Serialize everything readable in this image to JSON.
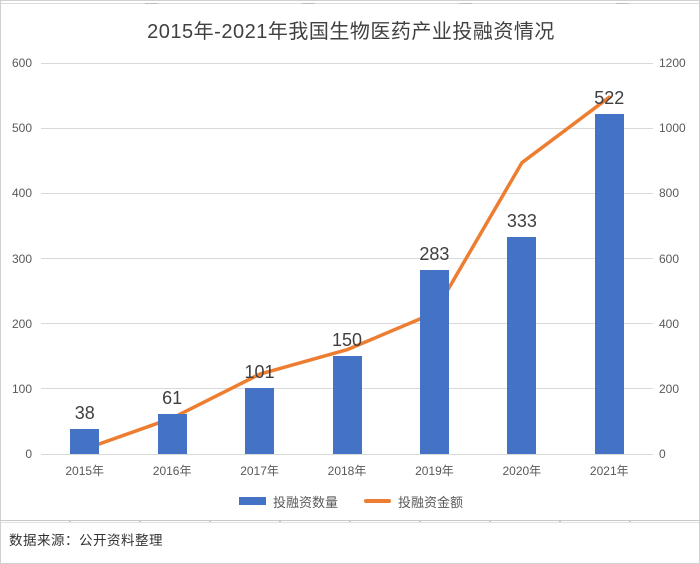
{
  "chart_data": {
    "type": "combo-bar-line",
    "title": "2015年-2021年我国生物医药产业投融资情况",
    "categories": [
      "2015年",
      "2016年",
      "2017年",
      "2018年",
      "2019年",
      "2020年",
      "2021年"
    ],
    "series": [
      {
        "name": "投融资数量",
        "type": "bar",
        "axis": "left",
        "color": "#4472C4",
        "values": [
          38,
          61,
          101,
          150,
          283,
          333,
          522
        ],
        "data_labels": true
      },
      {
        "name": "投融资金额",
        "type": "line",
        "axis": "right",
        "color": "#ED7D31",
        "values": [
          15,
          110,
          245,
          320,
          433,
          894,
          1095
        ],
        "data_labels": false
      }
    ],
    "left_axis": {
      "min": 0,
      "max": 600,
      "ticks": [
        0,
        100,
        200,
        300,
        400,
        500,
        600
      ]
    },
    "right_axis": {
      "min": 0,
      "max": 1200,
      "ticks": [
        0,
        200,
        400,
        600,
        800,
        1000,
        1200
      ]
    },
    "legend": {
      "position": "bottom",
      "items": [
        "投融资数量",
        "投融资金额"
      ]
    },
    "grid": true
  },
  "footer": {
    "source_note": "数据来源：公开资料整理"
  },
  "colors": {
    "bar": "#4472C4",
    "line": "#ED7D31",
    "gridline": "#D9D9D9",
    "title_text": "#404040",
    "axis_text": "#595959",
    "source_text": "#333333",
    "frame_border": "#D0D0D0"
  }
}
